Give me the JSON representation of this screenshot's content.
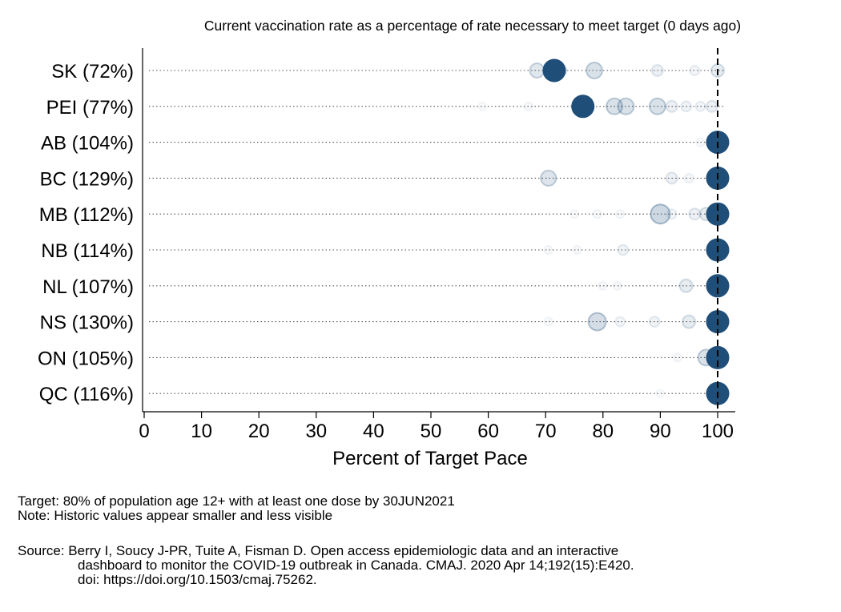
{
  "chart_data": {
    "type": "scatter",
    "title": "Current vaccination rate as a percentage of rate necessary to meet target (0 days ago)",
    "xlabel": "Percent of Target Pace",
    "ylabel": "",
    "xlim": [
      0,
      100
    ],
    "xticks": [
      "0",
      "10",
      "20",
      "30",
      "40",
      "50",
      "60",
      "70",
      "80",
      "90",
      "100"
    ],
    "target_line": 100,
    "colors": {
      "point": "#1f4e79",
      "dots": "#555555",
      "target": "#000000"
    },
    "rows": [
      {
        "label": "SK (72%)",
        "current": 72,
        "current_plot": 71.5,
        "history": [
          {
            "x": 68.5,
            "o": 0.25
          },
          {
            "x": 72.5,
            "o": 0.2
          },
          {
            "x": 78.5,
            "o": 0.3
          },
          {
            "x": 89.5,
            "o": 0.15
          },
          {
            "x": 96,
            "o": 0.1
          },
          {
            "x": 100,
            "o": 0.2
          }
        ]
      },
      {
        "label": "PEI (77%)",
        "current": 77,
        "current_plot": 76.5,
        "history": [
          {
            "x": 59,
            "o": 0.05
          },
          {
            "x": 67,
            "o": 0.06
          },
          {
            "x": 82,
            "o": 0.3
          },
          {
            "x": 84,
            "o": 0.3
          },
          {
            "x": 89.5,
            "o": 0.3
          },
          {
            "x": 92,
            "o": 0.15
          },
          {
            "x": 94.5,
            "o": 0.12
          },
          {
            "x": 97,
            "o": 0.1
          },
          {
            "x": 99,
            "o": 0.15
          }
        ]
      },
      {
        "label": "AB (104%)",
        "current": 104,
        "current_plot": 100,
        "history": [
          {
            "x": 97,
            "o": 0.06
          }
        ]
      },
      {
        "label": "BC (129%)",
        "current": 129,
        "current_plot": 100,
        "history": [
          {
            "x": 70.5,
            "o": 0.28
          },
          {
            "x": 92,
            "o": 0.15
          },
          {
            "x": 95,
            "o": 0.08
          }
        ]
      },
      {
        "label": "MB (112%)",
        "current": 112,
        "current_plot": 100,
        "history": [
          {
            "x": 75,
            "o": 0.05
          },
          {
            "x": 79,
            "o": 0.06
          },
          {
            "x": 83,
            "o": 0.06
          },
          {
            "x": 90,
            "o": 0.4
          },
          {
            "x": 92,
            "o": 0.1
          },
          {
            "x": 96,
            "o": 0.15
          },
          {
            "x": 98,
            "o": 0.2
          }
        ]
      },
      {
        "label": "NB (114%)",
        "current": 114,
        "current_plot": 100,
        "history": [
          {
            "x": 70.5,
            "o": 0.06
          },
          {
            "x": 75.5,
            "o": 0.06
          },
          {
            "x": 83.5,
            "o": 0.12
          }
        ]
      },
      {
        "label": "NL (107%)",
        "current": 107,
        "current_plot": 100,
        "history": [
          {
            "x": 80,
            "o": 0.06
          },
          {
            "x": 82.5,
            "o": 0.06
          },
          {
            "x": 94.5,
            "o": 0.2
          }
        ]
      },
      {
        "label": "NS (130%)",
        "current": 130,
        "current_plot": 100,
        "history": [
          {
            "x": 70.5,
            "o": 0.06
          },
          {
            "x": 79,
            "o": 0.35
          },
          {
            "x": 83,
            "o": 0.1
          },
          {
            "x": 89,
            "o": 0.12
          },
          {
            "x": 95,
            "o": 0.2
          }
        ]
      },
      {
        "label": "ON (105%)",
        "current": 105,
        "current_plot": 100,
        "history": [
          {
            "x": 98,
            "o": 0.3
          },
          {
            "x": 93,
            "o": 0.06
          }
        ]
      },
      {
        "label": "QC (116%)",
        "current": 116,
        "current_plot": 100,
        "history": [
          {
            "x": 90,
            "o": 0.05
          }
        ]
      }
    ]
  },
  "notes": {
    "target": "Target: 80% of population age 12+ with at least one dose by 30JUN2021",
    "note": "Note: Historic values appear smaller and less visible",
    "source_line1": "Source: Berry I, Soucy J-PR, Tuite A, Fisman D. Open access epidemiologic data and an interactive",
    "source_line2": "dashboard to monitor the COVID-19 outbreak in Canada. CMAJ. 2020 Apr 14;192(15):E420.",
    "source_line3": "doi: https://doi.org/10.1503/cmaj.75262."
  }
}
